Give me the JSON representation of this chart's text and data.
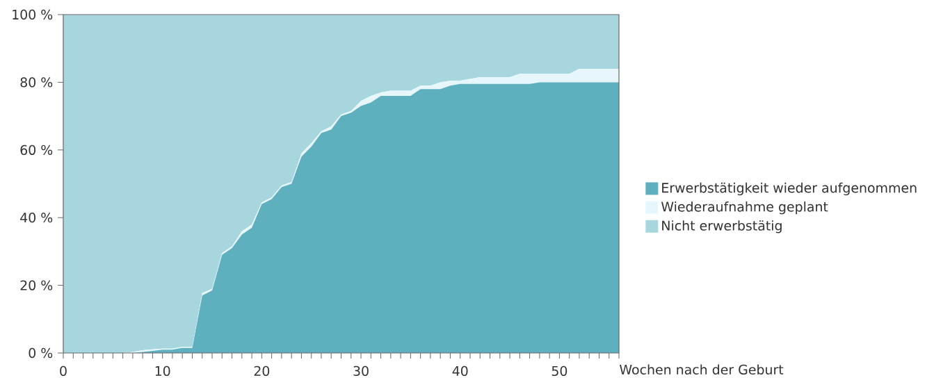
{
  "chart_data": {
    "type": "area",
    "stacked": true,
    "xlabel": "Wochen nach der Geburt",
    "x": [
      0,
      1,
      2,
      3,
      4,
      5,
      6,
      7,
      8,
      9,
      10,
      11,
      12,
      13,
      14,
      15,
      16,
      17,
      18,
      19,
      20,
      21,
      22,
      23,
      24,
      25,
      26,
      27,
      28,
      29,
      30,
      31,
      32,
      33,
      34,
      35,
      36,
      37,
      38,
      39,
      40,
      41,
      42,
      43,
      44,
      45,
      46,
      47,
      48,
      49,
      50,
      51,
      52,
      53,
      54,
      55,
      56
    ],
    "series": [
      {
        "name": "Erwerbstätigkeit wieder aufgenommen",
        "color": "#5eb0bf",
        "values": [
          0,
          0,
          0,
          0,
          0,
          0,
          0,
          0,
          0.3,
          0.6,
          1,
          1,
          1.5,
          1.5,
          17,
          18.5,
          29,
          31,
          35,
          37,
          44,
          45.5,
          49,
          50,
          58,
          61,
          65,
          66,
          70,
          71,
          73,
          74,
          76,
          76,
          76,
          76,
          78,
          78,
          78,
          79,
          79.5,
          79.5,
          79.5,
          79.5,
          79.5,
          79.5,
          79.5,
          79.5,
          80,
          80,
          80,
          80,
          80,
          80,
          80,
          80,
          80
        ]
      },
      {
        "name": "Wiederaufnahme geplant",
        "color": "#e6f6fa",
        "values": [
          0,
          0,
          0,
          0,
          0,
          0,
          0,
          0.3,
          0.5,
          0.5,
          0.3,
          0.3,
          0.3,
          0.3,
          0.7,
          0.5,
          0.5,
          0.5,
          1,
          1,
          0.5,
          0.5,
          0.5,
          0.5,
          1,
          1,
          0.5,
          1,
          0.5,
          0.5,
          1.5,
          2,
          1,
          1.5,
          1.5,
          1.5,
          1,
          1,
          2,
          1.5,
          1,
          1.5,
          2,
          2,
          2,
          2,
          3,
          3,
          2.5,
          2.5,
          2.5,
          2.5,
          4,
          4,
          4,
          4,
          4
        ]
      },
      {
        "name": "Nicht erwerbstätig",
        "color": "#a7d6df",
        "values": [
          100,
          100,
          100,
          100,
          100,
          100,
          100,
          99.7,
          99.2,
          98.9,
          98.7,
          98.7,
          98.2,
          98.2,
          82.3,
          81,
          70.5,
          68.5,
          64,
          62,
          55.5,
          54,
          50.5,
          49.5,
          41,
          38,
          34.5,
          33,
          29.5,
          28.5,
          25.5,
          24,
          23,
          22.5,
          22.5,
          22.5,
          21,
          21,
          20,
          19.5,
          19.5,
          19,
          18.5,
          18.5,
          18.5,
          18.5,
          17.5,
          17.5,
          17.5,
          17.5,
          17.5,
          17.5,
          16,
          16,
          16,
          16,
          16
        ]
      }
    ],
    "xlim": [
      0,
      56
    ],
    "xticks": [
      0,
      {
        "value": 1,
        "label": null
      },
      {
        "value": 2,
        "label": null
      },
      {
        "value": 3,
        "label": null
      },
      {
        "value": 4,
        "label": null
      },
      {
        "value": 5,
        "label": null
      },
      {
        "value": 6,
        "label": null
      },
      {
        "value": 7,
        "label": null
      },
      {
        "value": 8,
        "label": null
      },
      {
        "value": 9,
        "label": null
      },
      10,
      {
        "value": 11,
        "label": null
      },
      {
        "value": 12,
        "label": null
      },
      {
        "value": 13,
        "label": null
      },
      {
        "value": 14,
        "label": null
      },
      {
        "value": 15,
        "label": null
      },
      {
        "value": 16,
        "label": null
      },
      {
        "value": 17,
        "label": null
      },
      {
        "value": 18,
        "label": null
      },
      {
        "value": 19,
        "label": null
      },
      20,
      {
        "value": 21,
        "label": null
      },
      {
        "value": 22,
        "label": null
      },
      {
        "value": 23,
        "label": null
      },
      {
        "value": 24,
        "label": null
      },
      {
        "value": 25,
        "label": null
      },
      {
        "value": 26,
        "label": null
      },
      {
        "value": 27,
        "label": null
      },
      {
        "value": 28,
        "label": null
      },
      {
        "value": 29,
        "label": null
      },
      30,
      {
        "value": 31,
        "label": null
      },
      {
        "value": 32,
        "label": null
      },
      {
        "value": 33,
        "label": null
      },
      {
        "value": 34,
        "label": null
      },
      {
        "value": 35,
        "label": null
      },
      {
        "value": 36,
        "label": null
      },
      {
        "value": 37,
        "label": null
      },
      {
        "value": 38,
        "label": null
      },
      {
        "value": 39,
        "label": null
      },
      40,
      {
        "value": 41,
        "label": null
      },
      {
        "value": 42,
        "label": null
      },
      {
        "value": 43,
        "label": null
      },
      {
        "value": 44,
        "label": null
      },
      {
        "value": 45,
        "label": null
      },
      {
        "value": 46,
        "label": null
      },
      {
        "value": 47,
        "label": null
      },
      {
        "value": 48,
        "label": null
      },
      {
        "value": 49,
        "label": null
      },
      50,
      {
        "value": 51,
        "label": null
      },
      {
        "value": 52,
        "label": null
      },
      {
        "value": 53,
        "label": null
      },
      {
        "value": 54,
        "label": null
      },
      {
        "value": 55,
        "label": null
      },
      {
        "value": 56,
        "label": null
      }
    ],
    "ylim": [
      0,
      100
    ],
    "yticks": [
      {
        "value": 0,
        "label": "0 %"
      },
      {
        "value": 20,
        "label": "20 %"
      },
      {
        "value": 40,
        "label": "40 %"
      },
      {
        "value": 60,
        "label": "60 %"
      },
      {
        "value": 80,
        "label": "80 %"
      },
      {
        "value": 100,
        "label": "100 %"
      }
    ],
    "legend": "right",
    "grid": false
  }
}
